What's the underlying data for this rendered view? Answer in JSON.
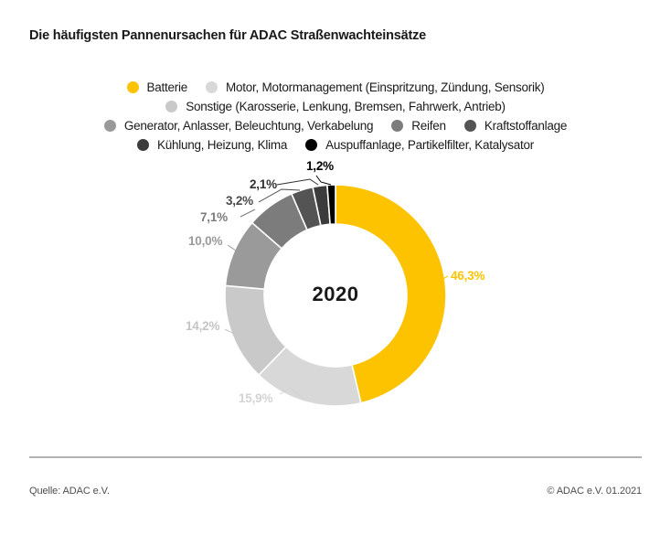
{
  "title": "Die häufigsten Pannenursachen für ADAC Straßenwachteinsätze",
  "chart_data": {
    "type": "pie",
    "subtype": "donut",
    "center_label": "2020",
    "start_angle_deg": 0,
    "direction": "clockwise",
    "legend_position": "top",
    "categories": [
      "Batterie",
      "Motor, Motormanagement (Einspritzung, Zündung, Sensorik)",
      "Sonstige (Karosserie, Lenkung, Bremsen, Fahrwerk, Antrieb)",
      "Generator, Anlasser, Beleuchtung, Verkabelung",
      "Reifen",
      "Kraftstoffanlage",
      "Kühlung, Heizung, Klima",
      "Auspuffanlage, Partikelfilter, Katalysator"
    ],
    "values": [
      46.3,
      15.9,
      14.2,
      10.0,
      7.1,
      3.2,
      2.1,
      1.2
    ],
    "display_values": [
      "46,3%",
      "15,9%",
      "14,2%",
      "10,0%",
      "7,1%",
      "3,2%",
      "2,1%",
      "1,2%"
    ],
    "colors": [
      "#fdc300",
      "#d8d8d8",
      "#c9c9c9",
      "#9a9a9a",
      "#7c7c7c",
      "#545454",
      "#3c3c3c",
      "#000000"
    ],
    "label_colors": [
      "#fdc300",
      "#d3d3d3",
      "#c4c4c4",
      "#9a9a9a",
      "#7c7c7c",
      "#4a4a4a",
      "#303030",
      "#000000"
    ]
  },
  "footer": {
    "source": "Quelle: ADAC e.V.",
    "copyright": "© ADAC e.V. 01.2021"
  }
}
